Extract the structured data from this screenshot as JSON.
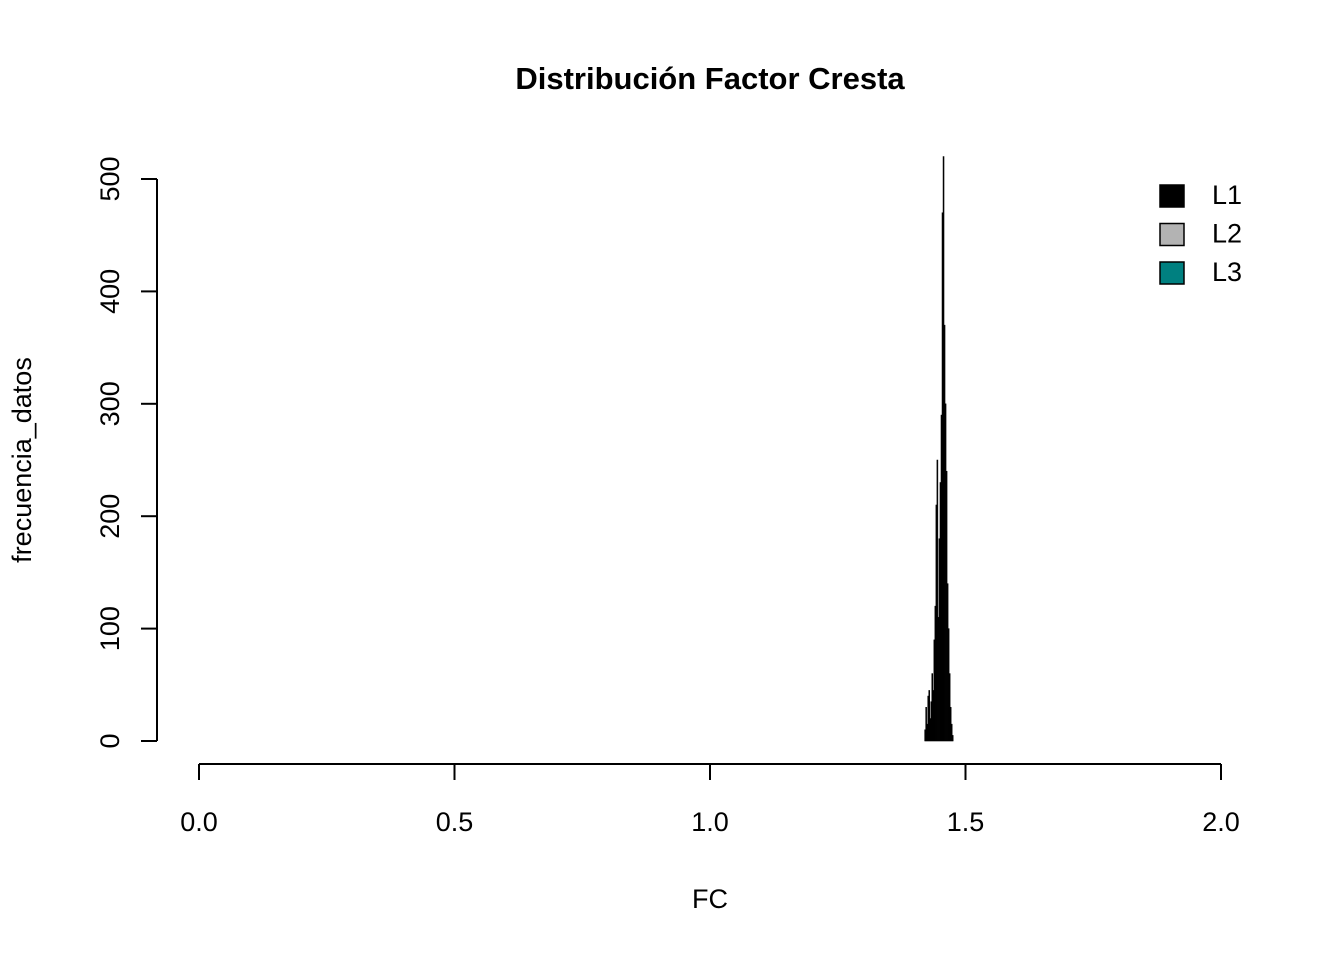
{
  "chart_data": {
    "type": "histogram",
    "title": "Distribución Factor Cresta",
    "x_label": "FC",
    "y_label": "frecuencia_datos",
    "bins": [
      1.42,
      1.422,
      1.424,
      1.426,
      1.428,
      1.43,
      1.432,
      1.434,
      1.436,
      1.438,
      1.44,
      1.442,
      1.444,
      1.446,
      1.448,
      1.45,
      1.452,
      1.454,
      1.456,
      1.458,
      1.46,
      1.462,
      1.464,
      1.466,
      1.468,
      1.47,
      1.472,
      1.474,
      1.476
    ],
    "counts": [
      10,
      30,
      15,
      40,
      45,
      20,
      35,
      60,
      45,
      90,
      120,
      210,
      250,
      110,
      180,
      230,
      290,
      470,
      520,
      370,
      300,
      240,
      140,
      100,
      60,
      30,
      15,
      5
    ],
    "color": "#000000",
    "xlim": [
      0,
      2
    ],
    "xticks": [
      {
        "value": 0,
        "label": "0.0"
      },
      {
        "value": 0.5,
        "label": "0.5"
      },
      {
        "value": 1,
        "label": "1.0"
      },
      {
        "value": 1.5,
        "label": "1.5"
      },
      {
        "value": 2,
        "label": "2.0"
      }
    ],
    "ylim": [
      0,
      520
    ],
    "yticks": [
      0,
      100,
      200,
      300,
      400,
      500
    ],
    "legend_position": "top-right",
    "legend": [
      {
        "name": "L1",
        "color": "#000000"
      },
      {
        "name": "L2",
        "color": "#b3b3b3"
      },
      {
        "name": "L3",
        "color": "#008080"
      }
    ]
  }
}
